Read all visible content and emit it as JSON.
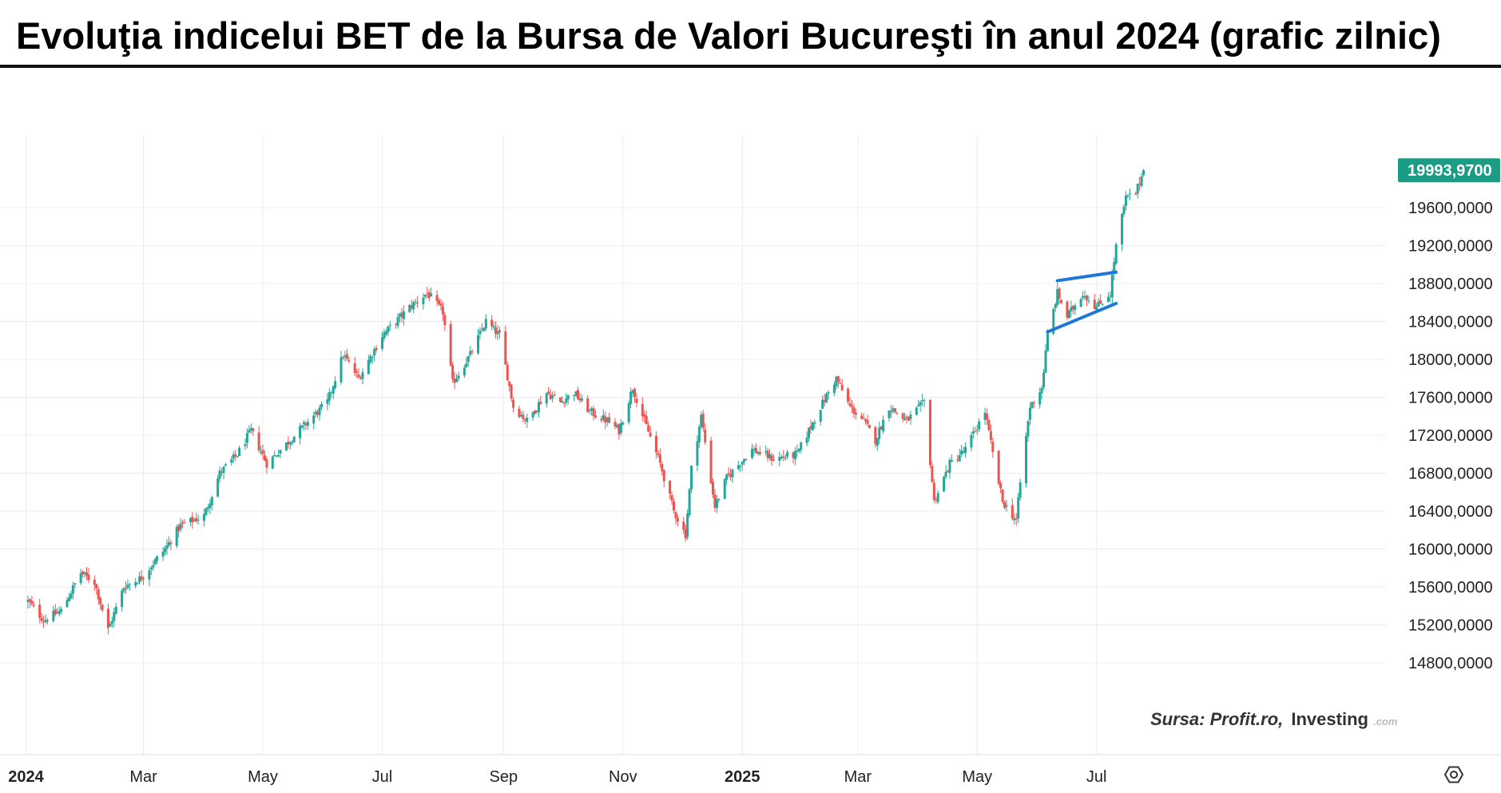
{
  "title": "Evoluţia indicelui BET de la Bursa de Valori Bucureşti în anul 2024 (grafic zilnic)",
  "source": {
    "label": "Sursa: Profit.ro,",
    "brand": "Investing",
    "brand_suffix": ".com"
  },
  "colors": {
    "up": "#26a69a",
    "down": "#ef5350",
    "last_price_bg": "#1b9c85",
    "trendline": "#1e78d7",
    "grid": "#ececec"
  },
  "settings_icon": "gear-icon",
  "chart_data": {
    "type": "candlestick",
    "title": "Evoluţia indicelui BET de la Bursa de Valori Bucureşti în anul 2024 (grafic zilnic)",
    "x_start": "2024-01-02",
    "x_end": "2025-07-25",
    "xlabel": "",
    "ylabel": "",
    "ylim": [
      14600,
      20400
    ],
    "grid": true,
    "x_ticks": [
      {
        "label": "2024",
        "date": "2024-01-01",
        "bold": true
      },
      {
        "label": "Mar",
        "date": "2024-03-01",
        "bold": false
      },
      {
        "label": "May",
        "date": "2024-05-01",
        "bold": false
      },
      {
        "label": "Jul",
        "date": "2024-07-01",
        "bold": false
      },
      {
        "label": "Sep",
        "date": "2024-09-01",
        "bold": false
      },
      {
        "label": "Nov",
        "date": "2024-11-01",
        "bold": false
      },
      {
        "label": "2025",
        "date": "2025-01-01",
        "bold": true
      },
      {
        "label": "Mar",
        "date": "2025-03-01",
        "bold": false
      },
      {
        "label": "May",
        "date": "2025-05-01",
        "bold": false
      },
      {
        "label": "Jul",
        "date": "2025-07-01",
        "bold": false
      }
    ],
    "y_ticks": [
      {
        "value": 14800,
        "label": "14800,0000"
      },
      {
        "value": 15200,
        "label": "15200,0000"
      },
      {
        "value": 15600,
        "label": "15600,0000"
      },
      {
        "value": 16000,
        "label": "16000,0000"
      },
      {
        "value": 16400,
        "label": "16400,0000"
      },
      {
        "value": 16800,
        "label": "16800,0000"
      },
      {
        "value": 17200,
        "label": "17200,0000"
      },
      {
        "value": 17600,
        "label": "17600,0000"
      },
      {
        "value": 18000,
        "label": "18000,0000"
      },
      {
        "value": 18400,
        "label": "18400,0000"
      },
      {
        "value": 18800,
        "label": "18800,0000"
      },
      {
        "value": 19200,
        "label": "19200,0000"
      },
      {
        "value": 19600,
        "label": "19600,0000"
      }
    ],
    "last_price": {
      "value": 19993.97,
      "label": "19993,9700"
    },
    "close_series": [
      {
        "date": "2024-01-02",
        "close": 15450
      },
      {
        "date": "2024-01-10",
        "close": 15250
      },
      {
        "date": "2024-01-19",
        "close": 15350
      },
      {
        "date": "2024-01-29",
        "close": 15750
      },
      {
        "date": "2024-02-05",
        "close": 15650
      },
      {
        "date": "2024-02-12",
        "close": 15150
      },
      {
        "date": "2024-02-20",
        "close": 15600
      },
      {
        "date": "2024-02-29",
        "close": 15700
      },
      {
        "date": "2024-03-12",
        "close": 16000
      },
      {
        "date": "2024-03-20",
        "close": 16250
      },
      {
        "date": "2024-04-01",
        "close": 16350
      },
      {
        "date": "2024-04-09",
        "close": 16800
      },
      {
        "date": "2024-04-18",
        "close": 17000
      },
      {
        "date": "2024-04-25",
        "close": 17250
      },
      {
        "date": "2024-05-03",
        "close": 16900
      },
      {
        "date": "2024-05-15",
        "close": 17150
      },
      {
        "date": "2024-05-22",
        "close": 17300
      },
      {
        "date": "2024-06-03",
        "close": 17550
      },
      {
        "date": "2024-06-11",
        "close": 18050
      },
      {
        "date": "2024-06-19",
        "close": 17800
      },
      {
        "date": "2024-07-01",
        "close": 18250
      },
      {
        "date": "2024-07-15",
        "close": 18550
      },
      {
        "date": "2024-07-24",
        "close": 18700
      },
      {
        "date": "2024-08-01",
        "close": 18500
      },
      {
        "date": "2024-08-06",
        "close": 17750
      },
      {
        "date": "2024-08-15",
        "close": 18050
      },
      {
        "date": "2024-08-23",
        "close": 18400
      },
      {
        "date": "2024-08-30",
        "close": 18250
      },
      {
        "date": "2024-09-06",
        "close": 17500
      },
      {
        "date": "2024-09-13",
        "close": 17350
      },
      {
        "date": "2024-09-23",
        "close": 17650
      },
      {
        "date": "2024-09-30",
        "close": 17550
      },
      {
        "date": "2024-10-07",
        "close": 17650
      },
      {
        "date": "2024-10-15",
        "close": 17450
      },
      {
        "date": "2024-10-24",
        "close": 17350
      },
      {
        "date": "2024-10-30",
        "close": 17250
      },
      {
        "date": "2024-11-06",
        "close": 17700
      },
      {
        "date": "2024-11-12",
        "close": 17350
      },
      {
        "date": "2024-11-20",
        "close": 16900
      },
      {
        "date": "2024-11-27",
        "close": 16400
      },
      {
        "date": "2024-12-03",
        "close": 16150
      },
      {
        "date": "2024-12-06",
        "close": 16850
      },
      {
        "date": "2024-12-11",
        "close": 17400
      },
      {
        "date": "2024-12-18",
        "close": 16450
      },
      {
        "date": "2024-12-24",
        "close": 16750
      },
      {
        "date": "2025-01-06",
        "close": 17050
      },
      {
        "date": "2025-01-17",
        "close": 16950
      },
      {
        "date": "2025-01-29",
        "close": 17000
      },
      {
        "date": "2025-02-10",
        "close": 17500
      },
      {
        "date": "2025-02-18",
        "close": 17800
      },
      {
        "date": "2025-02-25",
        "close": 17500
      },
      {
        "date": "2025-03-04",
        "close": 17350
      },
      {
        "date": "2025-03-10",
        "close": 17150
      },
      {
        "date": "2025-03-17",
        "close": 17500
      },
      {
        "date": "2025-03-26",
        "close": 17350
      },
      {
        "date": "2025-04-04",
        "close": 17550
      },
      {
        "date": "2025-04-09",
        "close": 16500
      },
      {
        "date": "2025-04-17",
        "close": 16900
      },
      {
        "date": "2025-04-25",
        "close": 17050
      },
      {
        "date": "2025-05-05",
        "close": 17450
      },
      {
        "date": "2025-05-09",
        "close": 17000
      },
      {
        "date": "2025-05-14",
        "close": 16500
      },
      {
        "date": "2025-05-21",
        "close": 16300
      },
      {
        "date": "2025-05-23",
        "close": 16700
      },
      {
        "date": "2025-05-28",
        "close": 17500
      },
      {
        "date": "2025-06-03",
        "close": 17700
      },
      {
        "date": "2025-06-06",
        "close": 18250
      },
      {
        "date": "2025-06-11",
        "close": 18700
      },
      {
        "date": "2025-06-16",
        "close": 18450
      },
      {
        "date": "2025-06-24",
        "close": 18700
      },
      {
        "date": "2025-07-01",
        "close": 18550
      },
      {
        "date": "2025-07-08",
        "close": 18700
      },
      {
        "date": "2025-07-11",
        "close": 19200
      },
      {
        "date": "2025-07-16",
        "close": 19700
      },
      {
        "date": "2025-07-21",
        "close": 19750
      },
      {
        "date": "2025-07-25",
        "close": 19994
      }
    ],
    "annotations": [
      {
        "type": "trendline",
        "points": [
          {
            "date": "2025-06-11",
            "value": 18830
          },
          {
            "date": "2025-07-11",
            "value": 18920
          }
        ]
      },
      {
        "type": "trendline",
        "points": [
          {
            "date": "2025-06-06",
            "value": 18290
          },
          {
            "date": "2025-07-11",
            "value": 18590
          }
        ]
      }
    ]
  }
}
